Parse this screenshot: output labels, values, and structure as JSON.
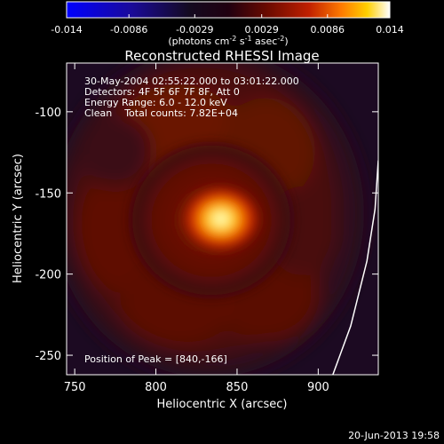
{
  "chart_data": {
    "type": "heatmap",
    "title": "Reconstructed RHESSI Image",
    "xlabel": "Heliocentric X (arcsec)",
    "ylabel": "Heliocentric Y (arcsec)",
    "xlim": [
      745,
      937
    ],
    "ylim": [
      -262,
      -70
    ],
    "x_ticks": [
      750,
      800,
      850,
      900
    ],
    "y_ticks": [
      -100,
      -150,
      -200,
      -250
    ],
    "colorbar": {
      "min": -0.014,
      "max": 0.014,
      "tick_labels": [
        "-0.014",
        "-0.0086",
        "-0.0029",
        "0.0029",
        "0.0086",
        "0.014"
      ],
      "ticks": [
        -0.014,
        -0.0086,
        -0.0029,
        0.0029,
        0.0086,
        0.014
      ],
      "label_main": "(photons cm",
      "label_exp1": "-2",
      "label_mid": " s",
      "label_exp2": "-1",
      "label_mid2": " asec",
      "label_exp3": "-2",
      "label_end": ")"
    },
    "annotations": {
      "time_range": "30-May-2004 02:55:22.000 to 03:01:22.000",
      "detectors": "Detectors: 4F 5F 6F 7F 8F, Att 0",
      "energy": "Energy Range: 6.0 - 12.0 keV",
      "clean": "Clean    Total counts: 7.82E+04",
      "peak": "Position of Peak = [840,-166]"
    },
    "peak": {
      "x": 840,
      "y": -166
    },
    "limb_curve": [
      [
        909,
        -262
      ],
      [
        920,
        -232
      ],
      [
        930,
        -192
      ],
      [
        935,
        -160
      ],
      [
        937,
        -130
      ]
    ],
    "footer": "20-Jun-2013 19:58"
  }
}
